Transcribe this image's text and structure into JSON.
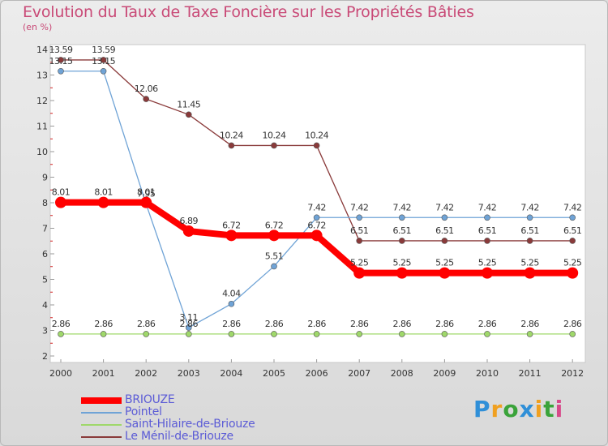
{
  "chart_data": {
    "type": "line",
    "title": "Evolution du Taux de Taxe Foncière sur les Propriétés Bâties",
    "ylabel": "(en %)",
    "xlabel": "",
    "ylim": [
      2,
      14
    ],
    "yticks": [
      "2",
      "3",
      "4",
      "5",
      "6",
      "7",
      "8",
      "9",
      "10",
      "11",
      "12",
      "13",
      "14"
    ],
    "categories": [
      "2000",
      "2001",
      "2002",
      "2003",
      "2004",
      "2005",
      "2006",
      "2007",
      "2008",
      "2009",
      "2010",
      "2011",
      "2012"
    ],
    "series": [
      {
        "name": "BRIOUZE",
        "color": "#ff0000",
        "values": [
          8.01,
          8.01,
          8.01,
          6.89,
          6.72,
          6.72,
          6.72,
          5.25,
          5.25,
          5.25,
          5.25,
          5.25,
          5.25
        ],
        "labels": [
          "8.01",
          "8.01",
          "8.01",
          "6.89",
          "6.72",
          "6.72",
          "6.72",
          "5.25",
          "5.25",
          "5.25",
          "5.25",
          "5.25",
          "5.25"
        ]
      },
      {
        "name": "Pointel",
        "color": "#6fa3d6",
        "values": [
          13.15,
          13.15,
          7.95,
          3.11,
          4.04,
          5.51,
          7.42,
          7.42,
          7.42,
          7.42,
          7.42,
          7.42,
          7.42
        ],
        "labels": [
          "13.15",
          "13.15",
          "7.95",
          "3.11",
          "4.04",
          "5.51",
          "7.42",
          "7.42",
          "7.42",
          "7.42",
          "7.42",
          "7.42",
          "7.42"
        ]
      },
      {
        "name": "Saint-Hilaire-de-Briouze",
        "color": "#9fd86a",
        "values": [
          2.86,
          2.86,
          2.86,
          2.86,
          2.86,
          2.86,
          2.86,
          2.86,
          2.86,
          2.86,
          2.86,
          2.86,
          2.86
        ],
        "labels": [
          "2.86",
          "2.86",
          "2.86",
          "2.86",
          "2.86",
          "2.86",
          "2.86",
          "2.86",
          "2.86",
          "2.86",
          "2.86",
          "2.86",
          "2.86"
        ]
      },
      {
        "name": "Le Ménil-de-Briouze",
        "color": "#8a3a3a",
        "values": [
          13.59,
          13.59,
          12.06,
          11.45,
          10.24,
          10.24,
          10.24,
          6.51,
          6.51,
          6.51,
          6.51,
          6.51,
          6.51
        ],
        "labels": [
          "13.59",
          "13.59",
          "12.06",
          "11.45",
          "10.24",
          "10.24",
          "10.24",
          "6.51",
          "6.51",
          "6.51",
          "6.51",
          "6.51",
          "6.51"
        ]
      }
    ],
    "grid": false,
    "legend": "bottom-left"
  },
  "logo": {
    "letters": [
      "P",
      "r",
      "o",
      "x",
      "i",
      "t",
      "i"
    ]
  }
}
